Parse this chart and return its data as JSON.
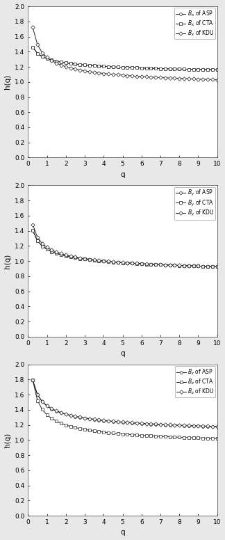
{
  "subplots": [
    {
      "legend_labels": [
        "$B_x$ of ASP",
        "$B_x$ of CTA",
        "$B_x$ of KDU"
      ],
      "ASP": {
        "start": 1.46,
        "end": 1.16,
        "curve": 0.3
      },
      "CTA": {
        "start": 1.46,
        "end": 1.16,
        "curve": 0.3
      },
      "KDU": {
        "start": 1.72,
        "end": 1.03,
        "curve": 0.45
      }
    },
    {
      "legend_labels": [
        "$B_y$ of ASP",
        "$B_y$ of CTA",
        "$B_y$ of KDU"
      ],
      "ASP": {
        "start": 1.405,
        "end": 0.925,
        "curve": 0.33
      },
      "CTA": {
        "start": 1.405,
        "end": 0.925,
        "curve": 0.33
      },
      "KDU": {
        "start": 1.48,
        "end": 0.925,
        "curve": 0.37
      }
    },
    {
      "legend_labels": [
        "$B_z$ of ASP",
        "$B_z$ of CTA",
        "$B_z$ of KDU"
      ],
      "ASP": {
        "start": 1.79,
        "end": 1.175,
        "curve": 0.4
      },
      "CTA": {
        "start": 1.79,
        "end": 1.02,
        "curve": 0.5
      },
      "KDU": {
        "start": 1.79,
        "end": 1.18,
        "curve": 0.4
      }
    }
  ],
  "q_values": [
    0.25,
    0.5,
    0.75,
    1.0,
    1.25,
    1.5,
    1.75,
    2.0,
    2.25,
    2.5,
    2.75,
    3.0,
    3.25,
    3.5,
    3.75,
    4.0,
    4.25,
    4.5,
    4.75,
    5.0,
    5.25,
    5.5,
    5.75,
    6.0,
    6.25,
    6.5,
    6.75,
    7.0,
    7.25,
    7.5,
    7.75,
    8.0,
    8.25,
    8.5,
    8.75,
    9.0,
    9.25,
    9.5,
    9.75,
    10.0
  ],
  "ylim": [
    0,
    2
  ],
  "xlim": [
    0,
    10
  ],
  "yticks": [
    0,
    0.2,
    0.4,
    0.6,
    0.8,
    1.0,
    1.2,
    1.4,
    1.6,
    1.8,
    2.0
  ],
  "xticks": [
    0,
    1,
    2,
    3,
    4,
    5,
    6,
    7,
    8,
    9,
    10
  ],
  "xlabel": "q",
  "ylabel": "h(q)",
  "line_color": "#222222",
  "markers": [
    "o",
    "s",
    "D"
  ],
  "markersize": 2.8,
  "linewidth": 0.7,
  "legend_fontsize": 5.5,
  "tick_fontsize": 6.5,
  "label_fontsize": 7.5,
  "bg_color": "#e8e8e8",
  "plot_bg_color": "#ffffff",
  "figsize": [
    3.24,
    7.76
  ],
  "dpi": 100
}
